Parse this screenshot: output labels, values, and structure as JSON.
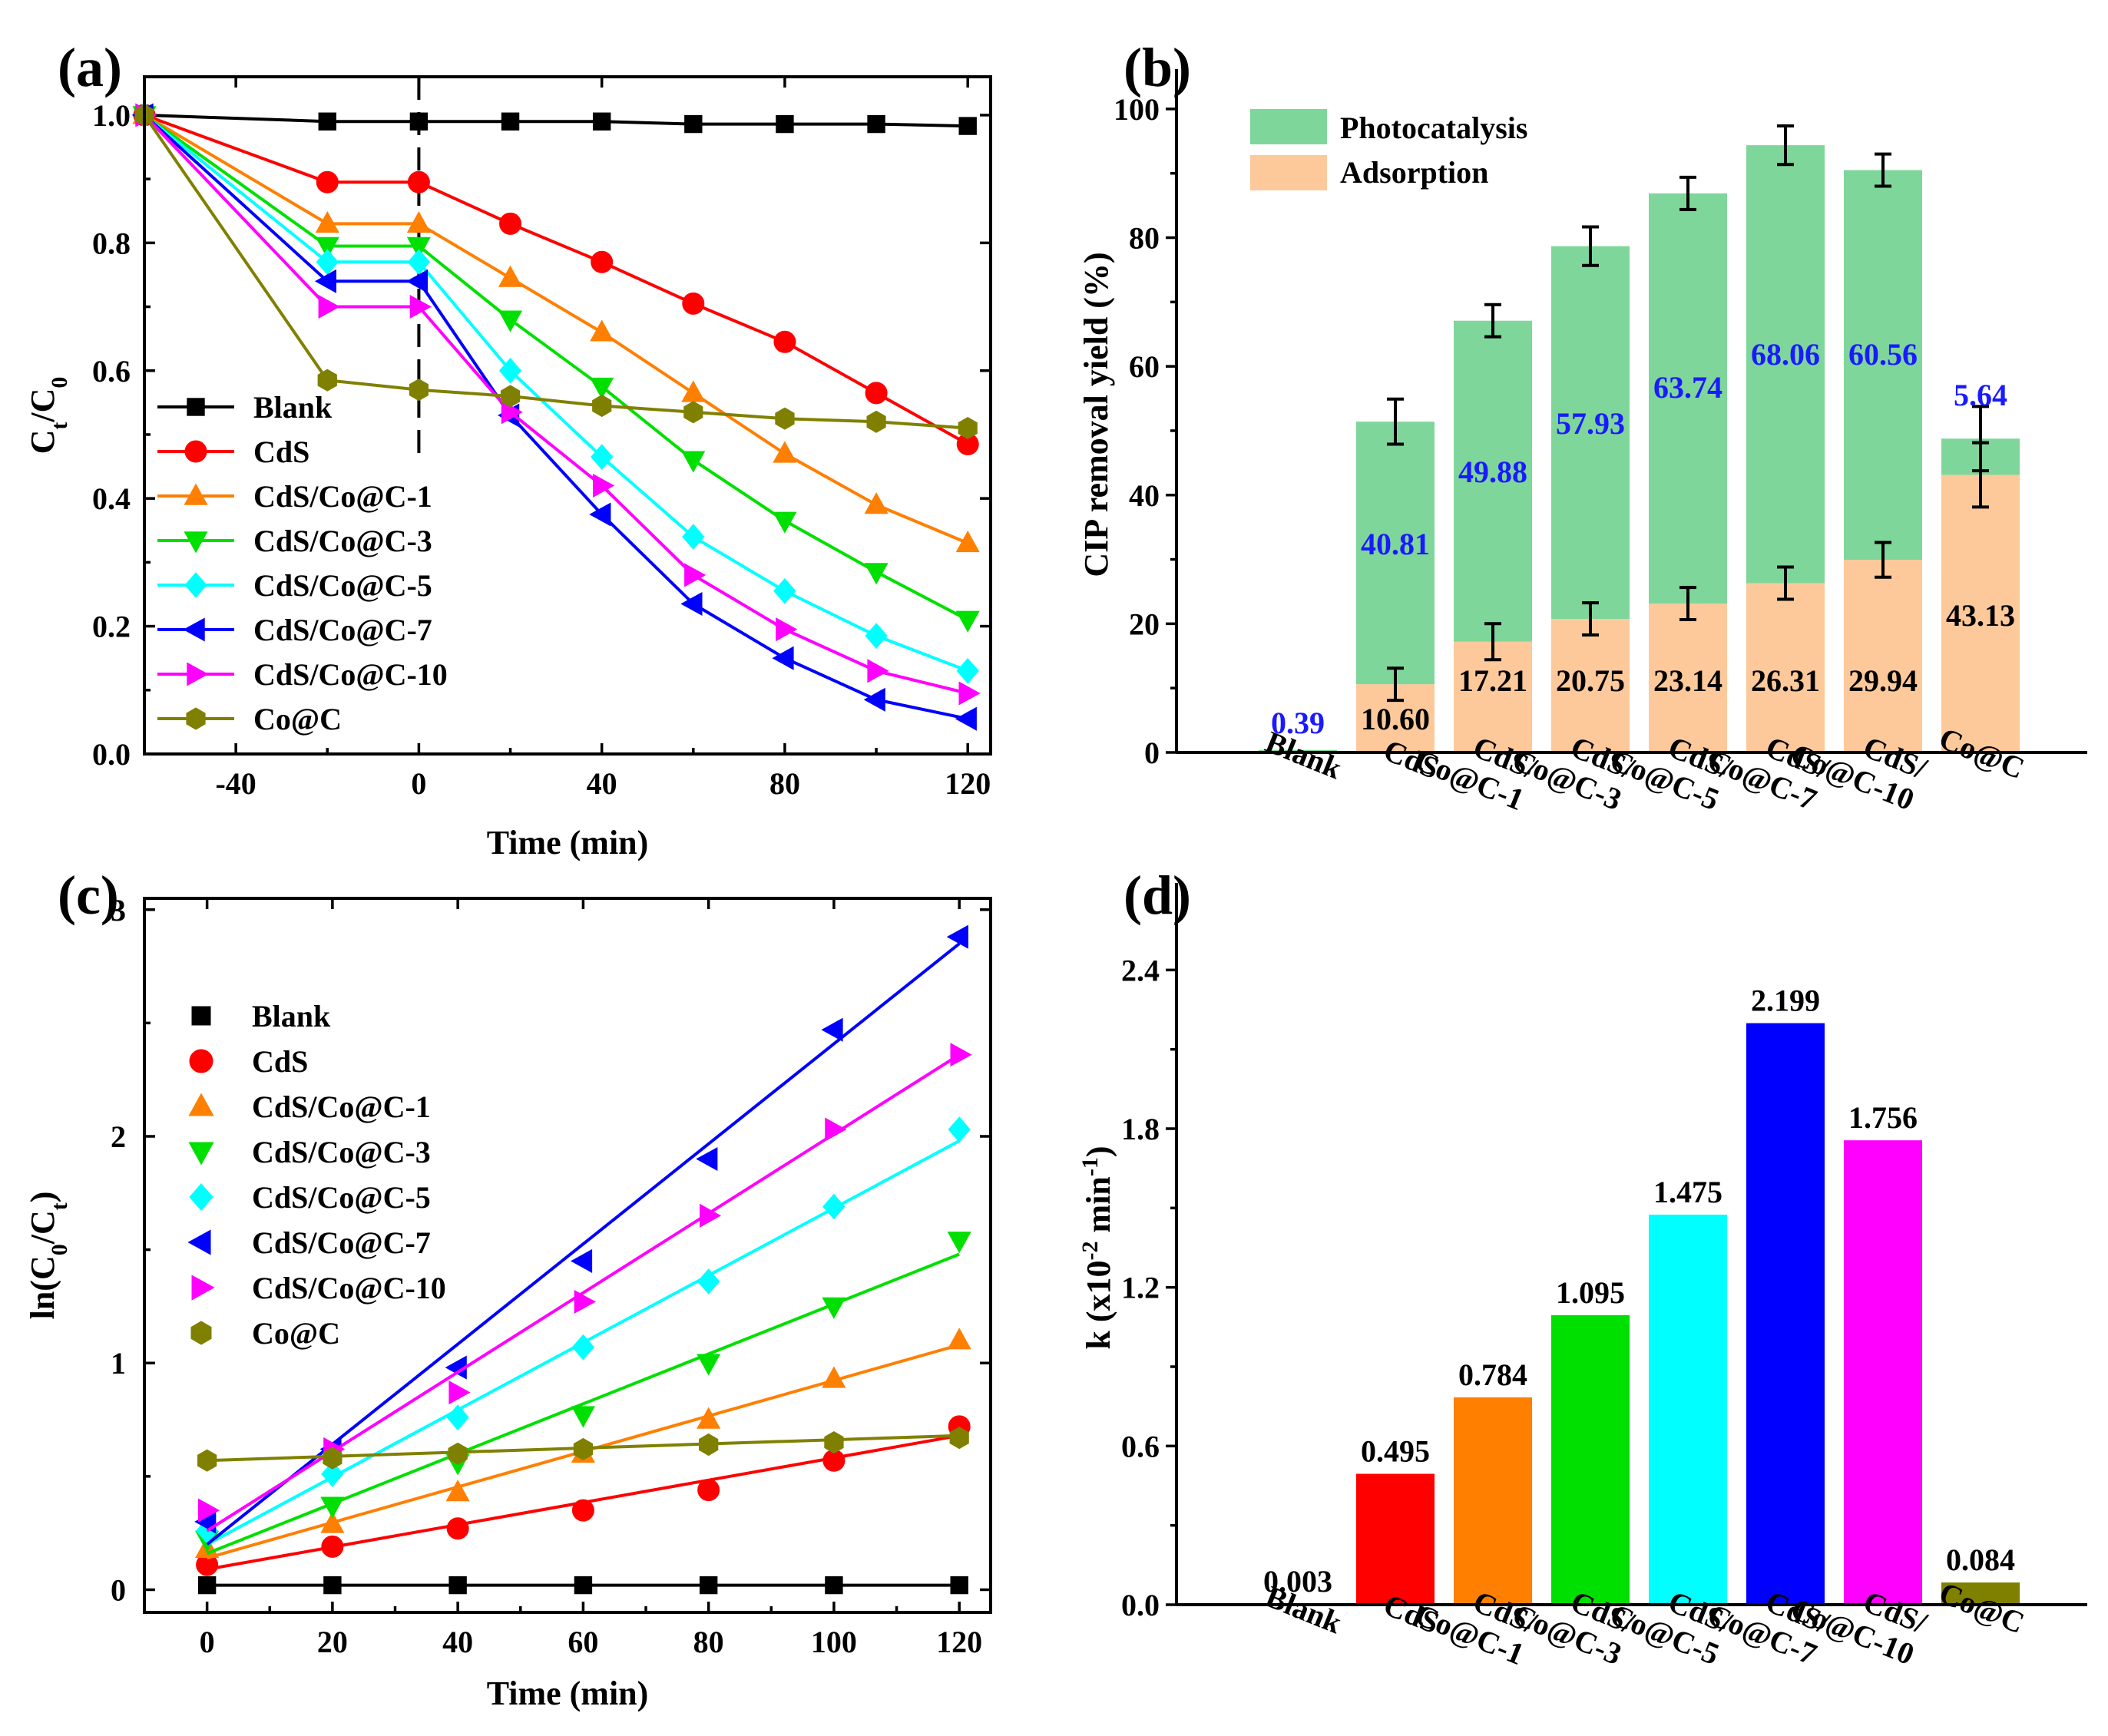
{
  "panels": {
    "a": {
      "label": "(a)"
    },
    "b": {
      "label": "(b)"
    },
    "c": {
      "label": "(c)"
    },
    "d": {
      "label": "(d)"
    }
  },
  "series_colors": {
    "Blank": "#000000",
    "CdS": "#ff0000",
    "CdS/Co@C-1": "#ff7f00",
    "CdS/Co@C-3": "#00e000",
    "CdS/Co@C-5": "#00ffff",
    "CdS/Co@C-7": "#0000ff",
    "CdS/Co@C-10": "#ff00ff",
    "Co@C": "#808000"
  },
  "chart_data": [
    {
      "id": "a",
      "type": "line",
      "xlabel": "Time (min)",
      "ylabel": "Ct/C0",
      "xlim": [
        -60,
        125
      ],
      "ylim": [
        0.0,
        1.06
      ],
      "xticks": [
        -40,
        0,
        40,
        80,
        120
      ],
      "yticks": [
        0.0,
        0.2,
        0.4,
        0.6,
        0.8,
        1.0
      ],
      "ytick_labels": [
        "0.0",
        "0.2",
        "0.4",
        "0.6",
        "0.8",
        "1.0"
      ],
      "vline_x": 0,
      "x": [
        -60,
        -20,
        0,
        20,
        40,
        60,
        80,
        100,
        120
      ],
      "series": [
        {
          "name": "Blank",
          "marker": "square",
          "values": [
            1.0,
            0.99,
            0.99,
            0.99,
            0.99,
            0.986,
            0.986,
            0.986,
            0.983
          ]
        },
        {
          "name": "CdS",
          "marker": "circle",
          "values": [
            1.0,
            0.895,
            0.895,
            0.83,
            0.77,
            0.705,
            0.645,
            0.565,
            0.485
          ]
        },
        {
          "name": "CdS/Co@C-1",
          "marker": "triangle-up",
          "values": [
            1.0,
            0.83,
            0.83,
            0.745,
            0.66,
            0.565,
            0.47,
            0.39,
            0.33
          ]
        },
        {
          "name": "CdS/Co@C-3",
          "marker": "triangle-down",
          "values": [
            1.0,
            0.795,
            0.795,
            0.68,
            0.575,
            0.46,
            0.365,
            0.285,
            0.21
          ]
        },
        {
          "name": "CdS/Co@C-5",
          "marker": "diamond",
          "values": [
            1.0,
            0.77,
            0.77,
            0.6,
            0.465,
            0.34,
            0.255,
            0.185,
            0.13
          ]
        },
        {
          "name": "CdS/Co@C-7",
          "marker": "triangle-left",
          "values": [
            1.0,
            0.74,
            0.74,
            0.53,
            0.375,
            0.235,
            0.15,
            0.085,
            0.055
          ]
        },
        {
          "name": "CdS/Co@C-10",
          "marker": "triangle-right",
          "values": [
            1.0,
            0.7,
            0.7,
            0.535,
            0.42,
            0.28,
            0.195,
            0.13,
            0.095
          ]
        },
        {
          "name": "Co@C",
          "marker": "hexagon",
          "values": [
            1.0,
            0.585,
            0.57,
            0.56,
            0.545,
            0.535,
            0.525,
            0.52,
            0.51
          ]
        }
      ]
    },
    {
      "id": "b",
      "type": "bar",
      "stacked": true,
      "ylabel": "CIP removal yield (%)",
      "ylim": [
        0,
        105
      ],
      "yticks": [
        0,
        20,
        40,
        60,
        80,
        100
      ],
      "categories": [
        "Blank",
        "CdS",
        "CdS/Co@C-1",
        "CdS/Co@C-3",
        "CdS/Co@C-5",
        "CdS/Co@C-7",
        "CdS/Co@C-10",
        "Co@C"
      ],
      "category_lines": [
        [
          "Blank"
        ],
        [
          "CdS"
        ],
        [
          "CdS/",
          "Co@C-1"
        ],
        [
          "CdS/",
          "Co@C-3"
        ],
        [
          "CdS/",
          "Co@C-5"
        ],
        [
          "CdS/",
          "Co@C-7"
        ],
        [
          "CdS/",
          "Co@C-10"
        ],
        [
          "Co@C"
        ]
      ],
      "series": [
        {
          "name": "Adsorption",
          "color": "#fdc99b",
          "values": [
            0,
            10.6,
            17.21,
            20.75,
            23.14,
            26.31,
            29.94,
            43.13
          ],
          "errors": [
            0,
            2.5,
            2.8,
            2.5,
            2.5,
            2.5,
            2.7,
            5.0
          ]
        },
        {
          "name": "Photocatalysis",
          "color": "#7fd69b",
          "values": [
            0.39,
            40.81,
            49.88,
            57.93,
            63.74,
            68.06,
            60.56,
            5.64
          ],
          "errors": [
            0,
            3.5,
            2.5,
            3.0,
            2.5,
            3.0,
            2.5,
            5.0
          ]
        }
      ],
      "adsorption_labels": [
        "",
        "10.60",
        "17.21",
        "20.75",
        "23.14",
        "26.31",
        "29.94",
        "43.13"
      ],
      "photocatalysis_labels": [
        "0.39",
        "40.81",
        "49.88",
        "57.93",
        "63.74",
        "68.06",
        "60.56",
        "5.64"
      ],
      "legend": [
        "Photocatalysis",
        "Adsorption"
      ],
      "label_color": "#1a1aff"
    },
    {
      "id": "c",
      "type": "scatter",
      "xlabel": "Time (min)",
      "ylabel": "ln(C0/Ct)",
      "xlim": [
        -10,
        125
      ],
      "ylim": [
        -0.1,
        3.05
      ],
      "xticks": [
        0,
        20,
        40,
        60,
        80,
        100,
        120
      ],
      "yticks": [
        0,
        1,
        2,
        3
      ],
      "x": [
        0,
        20,
        40,
        60,
        80,
        100,
        120
      ],
      "series": [
        {
          "name": "Blank",
          "marker": "square",
          "values": [
            0.02,
            0.02,
            0.02,
            0.02,
            0.02,
            0.02,
            0.02
          ],
          "fit": [
            0.02,
            0.02
          ]
        },
        {
          "name": "CdS",
          "marker": "circle",
          "values": [
            0.11,
            0.19,
            0.27,
            0.35,
            0.44,
            0.57,
            0.72
          ],
          "fit": [
            0.09,
            0.68
          ]
        },
        {
          "name": "CdS/Co@C-1",
          "marker": "triangle-up",
          "values": [
            0.18,
            0.29,
            0.43,
            0.6,
            0.75,
            0.93,
            1.1
          ],
          "fit": [
            0.14,
            1.08
          ]
        },
        {
          "name": "CdS/Co@C-3",
          "marker": "triangle-down",
          "values": [
            0.22,
            0.37,
            0.56,
            0.77,
            1.0,
            1.25,
            1.54
          ],
          "fit": [
            0.16,
            1.48
          ]
        },
        {
          "name": "CdS/Co@C-5",
          "marker": "diamond",
          "values": [
            0.26,
            0.51,
            0.76,
            1.07,
            1.36,
            1.69,
            2.03
          ],
          "fit": [
            0.2,
            1.98
          ]
        },
        {
          "name": "CdS/Co@C-7",
          "marker": "triangle-left",
          "values": [
            0.3,
            0.62,
            0.98,
            1.45,
            1.9,
            2.47,
            2.88
          ],
          "fit": [
            0.2,
            2.85
          ]
        },
        {
          "name": "CdS/Co@C-10",
          "marker": "triangle-right",
          "values": [
            0.35,
            0.62,
            0.87,
            1.27,
            1.65,
            2.03,
            2.36
          ],
          "fit": [
            0.26,
            2.36
          ]
        },
        {
          "name": "Co@C",
          "marker": "hexagon",
          "values": [
            0.57,
            0.58,
            0.6,
            0.62,
            0.64,
            0.65,
            0.67
          ],
          "fit": [
            0.57,
            0.68
          ]
        }
      ]
    },
    {
      "id": "d",
      "type": "bar",
      "ylabel": "k (x10-2 min-1)",
      "ylim": [
        0,
        2.7
      ],
      "yticks": [
        0.0,
        0.6,
        1.2,
        1.8,
        2.4
      ],
      "ytick_labels": [
        "0.0",
        "0.6",
        "1.2",
        "1.8",
        "2.4"
      ],
      "categories": [
        "Blank",
        "CdS",
        "CdS/Co@C-1",
        "CdS/Co@C-3",
        "CdS/Co@C-5",
        "CdS/Co@C-7",
        "CdS/Co@C-10",
        "Co@C"
      ],
      "category_lines": [
        [
          "Blank"
        ],
        [
          "CdS"
        ],
        [
          "CdS/",
          "Co@C-1"
        ],
        [
          "CdS/",
          "Co@C-3"
        ],
        [
          "CdS/",
          "Co@C-5"
        ],
        [
          "CdS/",
          "Co@C-7"
        ],
        [
          "CdS/",
          "Co@C-10"
        ],
        [
          "Co@C"
        ]
      ],
      "values": [
        0.003,
        0.495,
        0.784,
        1.095,
        1.475,
        2.199,
        1.756,
        0.084
      ],
      "value_labels": [
        "0.003",
        "0.495",
        "0.784",
        "1.095",
        "1.475",
        "2.199",
        "1.756",
        "0.084"
      ],
      "colors": [
        "#000000",
        "#ff0000",
        "#ff7f00",
        "#00e000",
        "#00ffff",
        "#0000ff",
        "#ff00ff",
        "#808000"
      ]
    }
  ]
}
